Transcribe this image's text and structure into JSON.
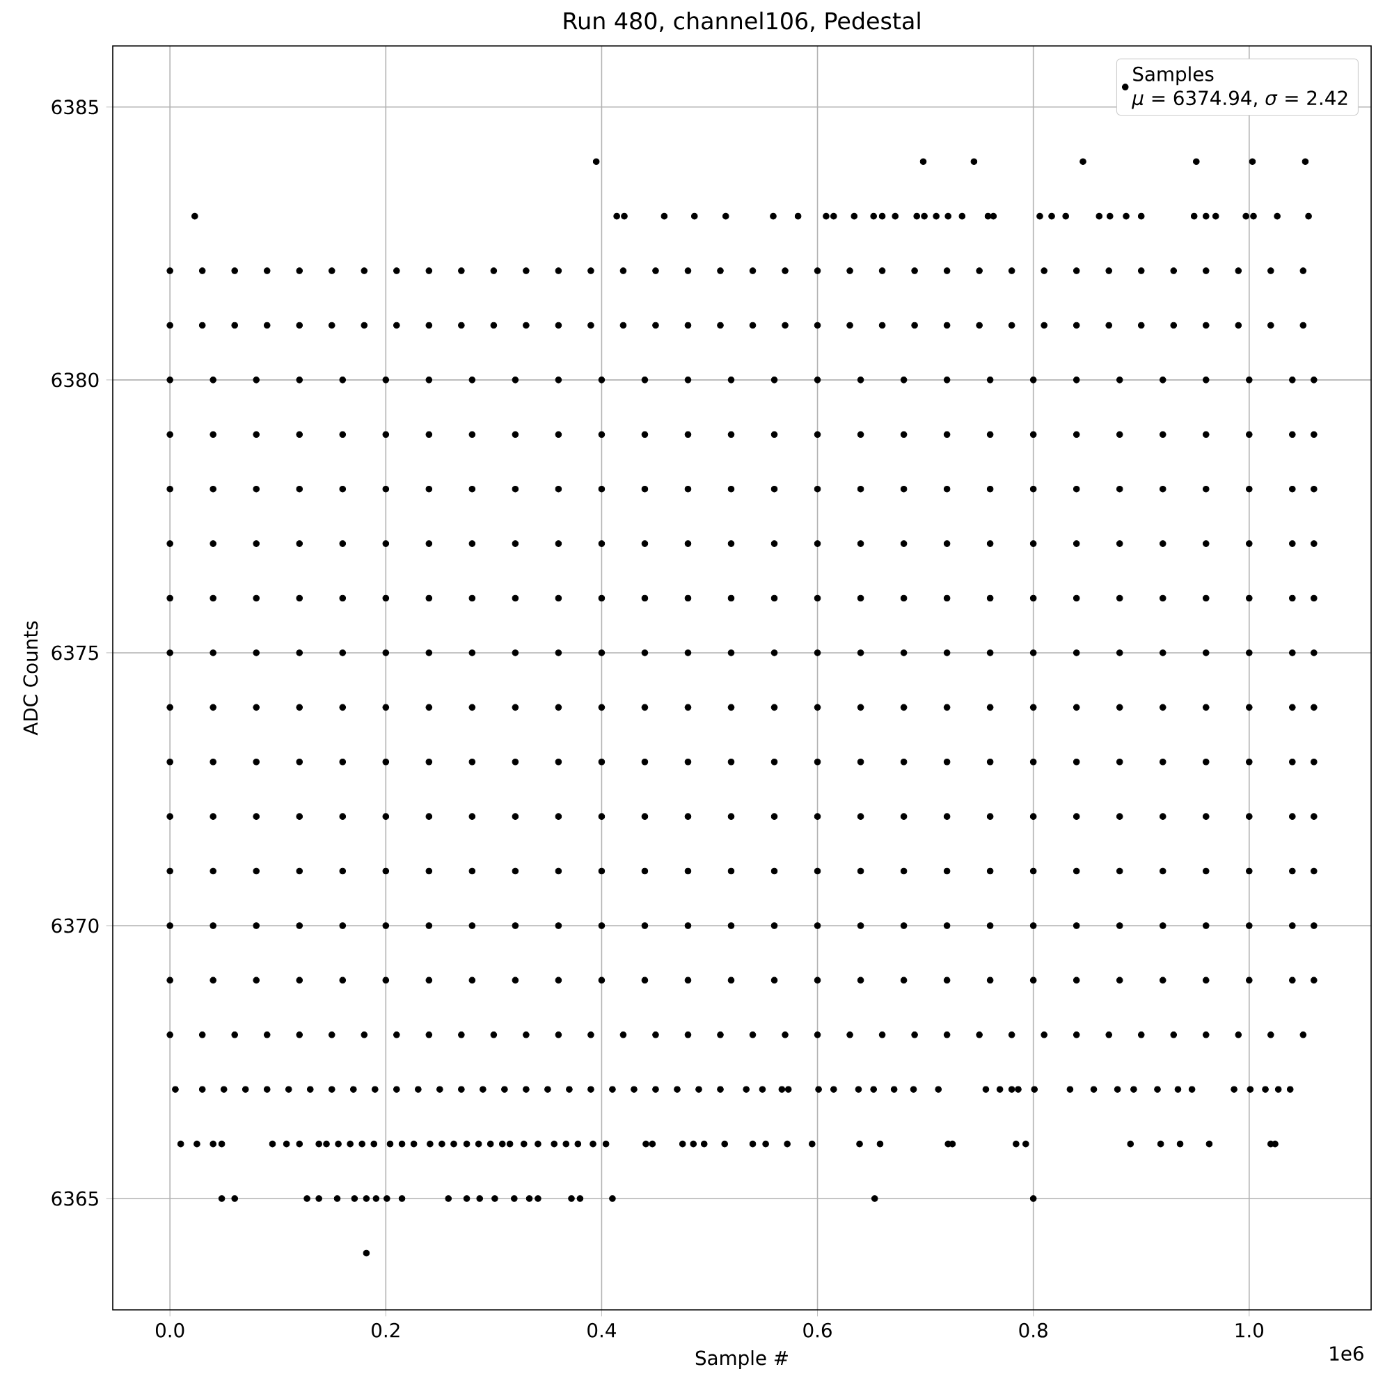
{
  "chart_data": {
    "type": "scatter",
    "title": "Run 480, channel106, Pedestal",
    "xlabel": "Sample #",
    "ylabel": "ADC Counts",
    "xlim": [
      -0.053,
      1.113
    ],
    "ylim": [
      6362.96,
      6386.12
    ],
    "xticks": [
      {
        "value": 0,
        "label": "0.0"
      },
      0.2,
      0.4,
      0.6,
      0.8,
      {
        "value": 1,
        "label": "1.0"
      }
    ],
    "yticks": [
      6365,
      6370,
      6375,
      6380,
      6385
    ],
    "grid": true,
    "legend": "top right",
    "marker": "circle",
    "annotations": [
      "*μ* = 6374.94, *σ* = 2.42",
      "1e6"
    ],
    "series": [
      {
        "name": "Samples",
        "color": "#000000",
        "x": [
          0.395,
          0.698,
          0.745,
          0.846,
          0.951,
          1.003,
          1.052
        ],
        "values": [
          6384,
          6384,
          6384,
          6384,
          6384,
          6384,
          6384
        ]
      },
      {
        "color": "#000000",
        "x": [
          0.023,
          0.414,
          0.421,
          0.458,
          0.486,
          0.515,
          0.559,
          0.582,
          0.608,
          0.615,
          0.634,
          0.652,
          0.66,
          0.672,
          0.692,
          0.699,
          0.71,
          0.721,
          0.734,
          0.758,
          0.763,
          0.806,
          0.817,
          0.83,
          0.861,
          0.871,
          0.886,
          0.9,
          0.949,
          0.96,
          0.969,
          0.997,
          1.004,
          1.026,
          1.055
        ],
        "values": [
          6383,
          6383,
          6383,
          6383,
          6383,
          6383,
          6383,
          6383,
          6383,
          6383,
          6383,
          6383,
          6383,
          6383,
          6383,
          6383,
          6383,
          6383,
          6383,
          6383,
          6383,
          6383,
          6383,
          6383,
          6383,
          6383,
          6383,
          6383,
          6383,
          6383,
          6383,
          6383,
          6383,
          6383,
          6383
        ]
      },
      {
        "color": "#000000",
        "x": [
          0,
          0.03,
          0.06,
          0.09,
          0.12,
          0.15,
          0.18,
          0.21,
          0.24,
          0.27,
          0.3,
          0.33,
          0.36,
          0.39,
          0.42,
          0.45,
          0.48,
          0.51,
          0.54,
          0.57,
          0.6,
          0.63,
          0.66,
          0.69,
          0.72,
          0.75,
          0.78,
          0.81,
          0.84,
          0.87,
          0.9,
          0.93,
          0.96,
          0.99,
          1.02,
          1.05
        ],
        "values": [
          6382,
          6382,
          6382,
          6382,
          6382,
          6382,
          6382,
          6382,
          6382,
          6382,
          6382,
          6382,
          6382,
          6382,
          6382,
          6382,
          6382,
          6382,
          6382,
          6382,
          6382,
          6382,
          6382,
          6382,
          6382,
          6382,
          6382,
          6382,
          6382,
          6382,
          6382,
          6382,
          6382,
          6382,
          6382,
          6382
        ]
      },
      {
        "color": "#000000",
        "x": [
          0,
          0.03,
          0.06,
          0.09,
          0.12,
          0.15,
          0.18,
          0.21,
          0.24,
          0.27,
          0.3,
          0.33,
          0.36,
          0.39,
          0.42,
          0.45,
          0.48,
          0.51,
          0.54,
          0.57,
          0.6,
          0.63,
          0.66,
          0.69,
          0.72,
          0.75,
          0.78,
          0.81,
          0.84,
          0.87,
          0.9,
          0.93,
          0.96,
          0.99,
          1.02,
          1.05
        ],
        "values": [
          6381,
          6381,
          6381,
          6381,
          6381,
          6381,
          6381,
          6381,
          6381,
          6381,
          6381,
          6381,
          6381,
          6381,
          6381,
          6381,
          6381,
          6381,
          6381,
          6381,
          6381,
          6381,
          6381,
          6381,
          6381,
          6381,
          6381,
          6381,
          6381,
          6381,
          6381,
          6381,
          6381,
          6381,
          6381,
          6381
        ]
      },
      {
        "color": "#000000",
        "x": [
          0,
          0.04,
          0.08,
          0.12,
          0.16,
          0.2,
          0.24,
          0.28,
          0.32,
          0.36,
          0.4,
          0.44,
          0.48,
          0.52,
          0.56,
          0.6,
          0.64,
          0.68,
          0.72,
          0.76,
          0.8,
          0.84,
          0.88,
          0.92,
          0.96,
          1,
          1.04,
          1.06
        ],
        "values": [
          6380,
          6380,
          6380,
          6380,
          6380,
          6380,
          6380,
          6380,
          6380,
          6380,
          6380,
          6380,
          6380,
          6380,
          6380,
          6380,
          6380,
          6380,
          6380,
          6380,
          6380,
          6380,
          6380,
          6380,
          6380,
          6380,
          6380,
          6380
        ]
      },
      {
        "color": "#000000",
        "x": [
          0,
          0.04,
          0.08,
          0.12,
          0.16,
          0.2,
          0.24,
          0.28,
          0.32,
          0.36,
          0.4,
          0.44,
          0.48,
          0.52,
          0.56,
          0.6,
          0.64,
          0.68,
          0.72,
          0.76,
          0.8,
          0.84,
          0.88,
          0.92,
          0.96,
          1,
          1.04,
          1.06
        ],
        "values": [
          6379,
          6379,
          6379,
          6379,
          6379,
          6379,
          6379,
          6379,
          6379,
          6379,
          6379,
          6379,
          6379,
          6379,
          6379,
          6379,
          6379,
          6379,
          6379,
          6379,
          6379,
          6379,
          6379,
          6379,
          6379,
          6379,
          6379,
          6379
        ]
      },
      {
        "color": "#000000",
        "x": [
          0,
          0.04,
          0.08,
          0.12,
          0.16,
          0.2,
          0.24,
          0.28,
          0.32,
          0.36,
          0.4,
          0.44,
          0.48,
          0.52,
          0.56,
          0.6,
          0.64,
          0.68,
          0.72,
          0.76,
          0.8,
          0.84,
          0.88,
          0.92,
          0.96,
          1,
          1.04,
          1.06
        ],
        "values": [
          6378,
          6378,
          6378,
          6378,
          6378,
          6378,
          6378,
          6378,
          6378,
          6378,
          6378,
          6378,
          6378,
          6378,
          6378,
          6378,
          6378,
          6378,
          6378,
          6378,
          6378,
          6378,
          6378,
          6378,
          6378,
          6378,
          6378,
          6378
        ]
      },
      {
        "color": "#000000",
        "x": [
          0,
          0.04,
          0.08,
          0.12,
          0.16,
          0.2,
          0.24,
          0.28,
          0.32,
          0.36,
          0.4,
          0.44,
          0.48,
          0.52,
          0.56,
          0.6,
          0.64,
          0.68,
          0.72,
          0.76,
          0.8,
          0.84,
          0.88,
          0.92,
          0.96,
          1,
          1.04,
          1.06
        ],
        "values": [
          6377,
          6377,
          6377,
          6377,
          6377,
          6377,
          6377,
          6377,
          6377,
          6377,
          6377,
          6377,
          6377,
          6377,
          6377,
          6377,
          6377,
          6377,
          6377,
          6377,
          6377,
          6377,
          6377,
          6377,
          6377,
          6377,
          6377,
          6377
        ]
      },
      {
        "color": "#000000",
        "x": [
          0,
          0.04,
          0.08,
          0.12,
          0.16,
          0.2,
          0.24,
          0.28,
          0.32,
          0.36,
          0.4,
          0.44,
          0.48,
          0.52,
          0.56,
          0.6,
          0.64,
          0.68,
          0.72,
          0.76,
          0.8,
          0.84,
          0.88,
          0.92,
          0.96,
          1,
          1.04,
          1.06
        ],
        "values": [
          6376,
          6376,
          6376,
          6376,
          6376,
          6376,
          6376,
          6376,
          6376,
          6376,
          6376,
          6376,
          6376,
          6376,
          6376,
          6376,
          6376,
          6376,
          6376,
          6376,
          6376,
          6376,
          6376,
          6376,
          6376,
          6376,
          6376,
          6376
        ]
      },
      {
        "color": "#000000",
        "x": [
          0,
          0.04,
          0.08,
          0.12,
          0.16,
          0.2,
          0.24,
          0.28,
          0.32,
          0.36,
          0.4,
          0.44,
          0.48,
          0.52,
          0.56,
          0.6,
          0.64,
          0.68,
          0.72,
          0.76,
          0.8,
          0.84,
          0.88,
          0.92,
          0.96,
          1,
          1.04,
          1.06
        ],
        "values": [
          6375,
          6375,
          6375,
          6375,
          6375,
          6375,
          6375,
          6375,
          6375,
          6375,
          6375,
          6375,
          6375,
          6375,
          6375,
          6375,
          6375,
          6375,
          6375,
          6375,
          6375,
          6375,
          6375,
          6375,
          6375,
          6375,
          6375,
          6375
        ]
      },
      {
        "color": "#000000",
        "x": [
          0,
          0.04,
          0.08,
          0.12,
          0.16,
          0.2,
          0.24,
          0.28,
          0.32,
          0.36,
          0.4,
          0.44,
          0.48,
          0.52,
          0.56,
          0.6,
          0.64,
          0.68,
          0.72,
          0.76,
          0.8,
          0.84,
          0.88,
          0.92,
          0.96,
          1,
          1.04,
          1.06
        ],
        "values": [
          6374,
          6374,
          6374,
          6374,
          6374,
          6374,
          6374,
          6374,
          6374,
          6374,
          6374,
          6374,
          6374,
          6374,
          6374,
          6374,
          6374,
          6374,
          6374,
          6374,
          6374,
          6374,
          6374,
          6374,
          6374,
          6374,
          6374,
          6374
        ]
      },
      {
        "color": "#000000",
        "x": [
          0,
          0.04,
          0.08,
          0.12,
          0.16,
          0.2,
          0.24,
          0.28,
          0.32,
          0.36,
          0.4,
          0.44,
          0.48,
          0.52,
          0.56,
          0.6,
          0.64,
          0.68,
          0.72,
          0.76,
          0.8,
          0.84,
          0.88,
          0.92,
          0.96,
          1,
          1.04,
          1.06
        ],
        "values": [
          6373,
          6373,
          6373,
          6373,
          6373,
          6373,
          6373,
          6373,
          6373,
          6373,
          6373,
          6373,
          6373,
          6373,
          6373,
          6373,
          6373,
          6373,
          6373,
          6373,
          6373,
          6373,
          6373,
          6373,
          6373,
          6373,
          6373,
          6373
        ]
      },
      {
        "color": "#000000",
        "x": [
          0,
          0.04,
          0.08,
          0.12,
          0.16,
          0.2,
          0.24,
          0.28,
          0.32,
          0.36,
          0.4,
          0.44,
          0.48,
          0.52,
          0.56,
          0.6,
          0.64,
          0.68,
          0.72,
          0.76,
          0.8,
          0.84,
          0.88,
          0.92,
          0.96,
          1,
          1.04,
          1.06
        ],
        "values": [
          6372,
          6372,
          6372,
          6372,
          6372,
          6372,
          6372,
          6372,
          6372,
          6372,
          6372,
          6372,
          6372,
          6372,
          6372,
          6372,
          6372,
          6372,
          6372,
          6372,
          6372,
          6372,
          6372,
          6372,
          6372,
          6372,
          6372,
          6372
        ]
      },
      {
        "color": "#000000",
        "x": [
          0,
          0.04,
          0.08,
          0.12,
          0.16,
          0.2,
          0.24,
          0.28,
          0.32,
          0.36,
          0.4,
          0.44,
          0.48,
          0.52,
          0.56,
          0.6,
          0.64,
          0.68,
          0.72,
          0.76,
          0.8,
          0.84,
          0.88,
          0.92,
          0.96,
          1,
          1.04,
          1.06
        ],
        "values": [
          6371,
          6371,
          6371,
          6371,
          6371,
          6371,
          6371,
          6371,
          6371,
          6371,
          6371,
          6371,
          6371,
          6371,
          6371,
          6371,
          6371,
          6371,
          6371,
          6371,
          6371,
          6371,
          6371,
          6371,
          6371,
          6371,
          6371,
          6371
        ]
      },
      {
        "color": "#000000",
        "x": [
          0,
          0.04,
          0.08,
          0.12,
          0.16,
          0.2,
          0.24,
          0.28,
          0.32,
          0.36,
          0.4,
          0.44,
          0.48,
          0.52,
          0.56,
          0.6,
          0.64,
          0.68,
          0.72,
          0.76,
          0.8,
          0.84,
          0.88,
          0.92,
          0.96,
          1,
          1.04,
          1.06
        ],
        "values": [
          6370,
          6370,
          6370,
          6370,
          6370,
          6370,
          6370,
          6370,
          6370,
          6370,
          6370,
          6370,
          6370,
          6370,
          6370,
          6370,
          6370,
          6370,
          6370,
          6370,
          6370,
          6370,
          6370,
          6370,
          6370,
          6370,
          6370,
          6370
        ]
      },
      {
        "color": "#000000",
        "x": [
          0,
          0.04,
          0.08,
          0.12,
          0.16,
          0.2,
          0.24,
          0.28,
          0.32,
          0.36,
          0.4,
          0.44,
          0.48,
          0.52,
          0.56,
          0.6,
          0.64,
          0.68,
          0.72,
          0.76,
          0.8,
          0.84,
          0.88,
          0.92,
          0.96,
          1,
          1.04,
          1.06
        ],
        "values": [
          6369,
          6369,
          6369,
          6369,
          6369,
          6369,
          6369,
          6369,
          6369,
          6369,
          6369,
          6369,
          6369,
          6369,
          6369,
          6369,
          6369,
          6369,
          6369,
          6369,
          6369,
          6369,
          6369,
          6369,
          6369,
          6369,
          6369,
          6369
        ]
      },
      {
        "color": "#000000",
        "x": [
          0,
          0.03,
          0.06,
          0.09,
          0.12,
          0.15,
          0.18,
          0.21,
          0.24,
          0.27,
          0.3,
          0.33,
          0.36,
          0.39,
          0.42,
          0.45,
          0.48,
          0.51,
          0.54,
          0.57,
          0.6,
          0.63,
          0.66,
          0.69,
          0.72,
          0.75,
          0.78,
          0.81,
          0.84,
          0.87,
          0.9,
          0.93,
          0.96,
          0.99,
          1.02,
          1.05
        ],
        "values": [
          6368,
          6368,
          6368,
          6368,
          6368,
          6368,
          6368,
          6368,
          6368,
          6368,
          6368,
          6368,
          6368,
          6368,
          6368,
          6368,
          6368,
          6368,
          6368,
          6368,
          6368,
          6368,
          6368,
          6368,
          6368,
          6368,
          6368,
          6368,
          6368,
          6368,
          6368,
          6368,
          6368,
          6368,
          6368,
          6368
        ]
      },
      {
        "color": "#000000",
        "x": [
          0.005,
          0.03,
          0.05,
          0.07,
          0.09,
          0.11,
          0.13,
          0.15,
          0.17,
          0.19,
          0.21,
          0.23,
          0.25,
          0.27,
          0.29,
          0.31,
          0.33,
          0.35,
          0.37,
          0.39,
          0.41,
          0.43,
          0.45,
          0.47,
          0.49,
          0.51,
          0.534,
          0.549,
          0.567,
          0.573,
          0.601,
          0.615,
          0.638,
          0.652,
          0.671,
          0.689,
          0.712,
          0.756,
          0.769,
          0.78,
          0.786,
          0.801,
          0.834,
          0.856,
          0.878,
          0.893,
          0.915,
          0.934,
          0.947,
          0.986,
          1.001,
          1.015,
          1.027,
          1.038
        ],
        "values": [
          6367,
          6367,
          6367,
          6367,
          6367,
          6367,
          6367,
          6367,
          6367,
          6367,
          6367,
          6367,
          6367,
          6367,
          6367,
          6367,
          6367,
          6367,
          6367,
          6367,
          6367,
          6367,
          6367,
          6367,
          6367,
          6367,
          6367,
          6367,
          6367,
          6367,
          6367,
          6367,
          6367,
          6367,
          6367,
          6367,
          6367,
          6367,
          6367,
          6367,
          6367,
          6367,
          6367,
          6367,
          6367,
          6367,
          6367,
          6367,
          6367,
          6367,
          6367,
          6367,
          6367,
          6367
        ]
      },
      {
        "color": "#000000",
        "x": [
          0.01,
          0.025,
          0.04,
          0.048,
          0.095,
          0.108,
          0.12,
          0.138,
          0.145,
          0.156,
          0.167,
          0.178,
          0.189,
          0.204,
          0.215,
          0.226,
          0.241,
          0.252,
          0.263,
          0.275,
          0.286,
          0.297,
          0.308,
          0.315,
          0.328,
          0.341,
          0.356,
          0.367,
          0.378,
          0.392,
          0.404,
          0.441,
          0.447,
          0.475,
          0.485,
          0.495,
          0.514,
          0.54,
          0.552,
          0.572,
          0.595,
          0.639,
          0.658,
          0.721,
          0.725,
          0.784,
          0.793,
          0.89,
          0.918,
          0.936,
          0.963,
          1.02,
          1.024
        ],
        "values": [
          6366,
          6366,
          6366,
          6366,
          6366,
          6366,
          6366,
          6366,
          6366,
          6366,
          6366,
          6366,
          6366,
          6366,
          6366,
          6366,
          6366,
          6366,
          6366,
          6366,
          6366,
          6366,
          6366,
          6366,
          6366,
          6366,
          6366,
          6366,
          6366,
          6366,
          6366,
          6366,
          6366,
          6366,
          6366,
          6366,
          6366,
          6366,
          6366,
          6366,
          6366,
          6366,
          6366,
          6366,
          6366,
          6366,
          6366,
          6366,
          6366,
          6366,
          6366,
          6366,
          6366
        ]
      },
      {
        "color": "#000000",
        "x": [
          0.048,
          0.06,
          0.127,
          0.138,
          0.155,
          0.171,
          0.182,
          0.191,
          0.201,
          0.215,
          0.258,
          0.275,
          0.287,
          0.301,
          0.319,
          0.333,
          0.341,
          0.372,
          0.38,
          0.41,
          0.653,
          0.8
        ],
        "values": [
          6365,
          6365,
          6365,
          6365,
          6365,
          6365,
          6365,
          6365,
          6365,
          6365,
          6365,
          6365,
          6365,
          6365,
          6365,
          6365,
          6365,
          6365,
          6365,
          6365,
          6365,
          6365
        ]
      },
      {
        "color": "#000000",
        "x": [
          0.182
        ],
        "values": [
          6364
        ]
      }
    ]
  }
}
